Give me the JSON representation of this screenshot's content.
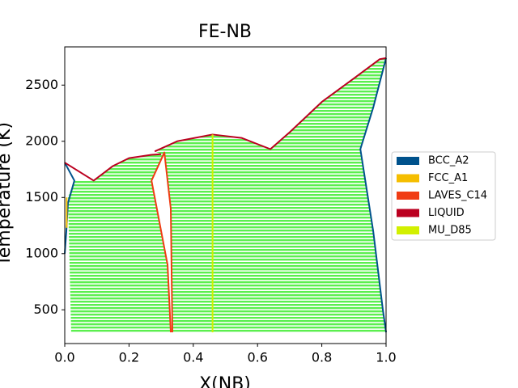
{
  "chart_data": {
    "type": "phase_diagram",
    "title": "FE-NB",
    "x_label": "X(NB)",
    "y_label": "Temperature (K)",
    "xlim": [
      0,
      1
    ],
    "ylim": [
      200,
      2840
    ],
    "xticks": [
      {
        "value": 0,
        "label": "0.0"
      },
      {
        "value": 0.2,
        "label": "0.2"
      },
      {
        "value": 0.4,
        "label": "0.4"
      },
      {
        "value": 0.6,
        "label": "0.6"
      },
      {
        "value": 0.8,
        "label": "0.8"
      },
      {
        "value": 1,
        "label": "1.0"
      }
    ],
    "yticks": [
      500,
      1000,
      1500,
      2000,
      2500
    ],
    "regions": [
      {
        "color": "#5bef4f",
        "x": [
          0.02,
          0.01,
          0.03,
          0.09,
          0.15,
          0.2,
          0.27,
          0.3,
          0.28,
          0.35,
          0.46,
          0.55,
          0.64,
          0.7,
          0.8,
          0.9,
          0.98,
          1.0,
          0.96,
          0.92,
          0.96,
          0.99,
          1.0
        ],
        "y": [
          300,
          1500,
          1650,
          1650,
          1780,
          1850,
          1880,
          1885,
          1910,
          2000,
          2060,
          2030,
          1930,
          2080,
          2350,
          2560,
          2730,
          2740,
          2300,
          1930,
          1200,
          500,
          300
        ]
      },
      {
        "color": "#ffffff",
        "x": [
          0.335,
          0.33,
          0.31,
          0.27,
          0.32,
          0.33
        ],
        "y": [
          300,
          1400,
          1900,
          1650,
          900,
          300
        ]
      }
    ],
    "series": [
      {
        "name": "BCC_A2",
        "color": "#00528c",
        "x": [
          0,
          0.03,
          0.01,
          0.005,
          0,
          null,
          1.0,
          0.96,
          0.92,
          0.96,
          0.99,
          1.0
        ],
        "y": [
          1810,
          1650,
          1450,
          1200,
          1000,
          null,
          2740,
          2300,
          1930,
          1200,
          500,
          300
        ]
      },
      {
        "name": "FCC_A1",
        "color": "#f5be00",
        "x": [
          0.006,
          0.006
        ],
        "y": [
          1230,
          1500
        ]
      },
      {
        "name": "LAVES_C14",
        "color": "#f03c14",
        "x": [
          0.335,
          0.33,
          0.31,
          0.27,
          0.32,
          0.33
        ],
        "y": [
          300,
          1400,
          1900,
          1650,
          900,
          300
        ]
      },
      {
        "name": "LIQUID",
        "color": "#bb0020",
        "x": [
          0,
          0.09,
          0.15,
          0.2,
          0.27,
          0.3,
          null,
          0.28,
          0.35,
          0.46,
          0.55,
          0.64,
          0.7,
          0.8,
          0.9,
          0.98,
          1.0
        ],
        "y": [
          1810,
          1650,
          1780,
          1850,
          1880,
          1885,
          null,
          1910,
          2000,
          2060,
          2030,
          1930,
          2080,
          2350,
          2560,
          2730,
          2740
        ]
      },
      {
        "name": "MU_D85",
        "color": "#d2f000",
        "x": [
          0.46,
          0.46
        ],
        "y": [
          300,
          2060
        ]
      }
    ]
  }
}
